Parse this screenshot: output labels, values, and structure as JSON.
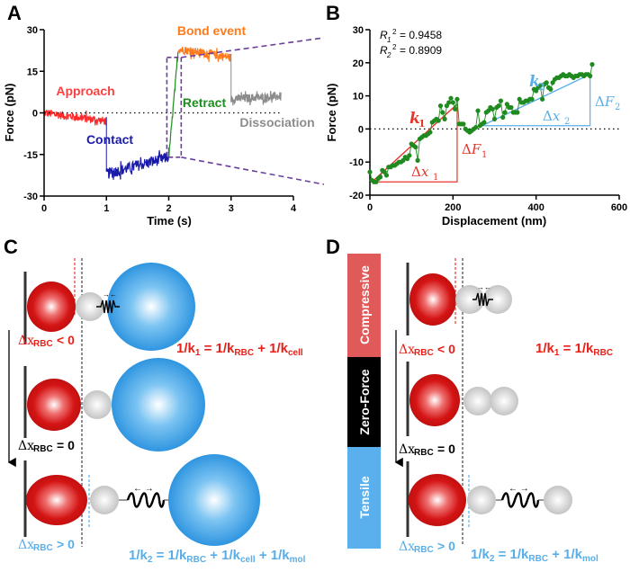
{
  "panels": {
    "A": {
      "letter": "A"
    },
    "B": {
      "letter": "B"
    },
    "C": {
      "letter": "C"
    },
    "D": {
      "letter": "D"
    }
  },
  "colors": {
    "approach": "#ff2a2a",
    "contact": "#1a1aaa",
    "retract": "#1e8c1e",
    "bond": "#ff7a1a",
    "dissociation": "#8c8c8c",
    "zoom_box": "#6a3d9a",
    "k1_fit": "#e8352b",
    "k2_fit": "#5aaee8",
    "points": "#1f8a1f",
    "rbc": "#d41414",
    "cell": "#3aa0e8",
    "bead": "#d8d8d8",
    "compressive": "#e05a5a",
    "zero_force": "#000000",
    "tensile": "#5ab0ec",
    "red_text": "#e8201a",
    "blue_text": "#5ab0ec"
  },
  "chart_data": [
    {
      "id": "A",
      "type": "line",
      "title": "",
      "xlabel": "Time (s)",
      "ylabel": "Force (pN)",
      "xlim": [
        0,
        4
      ],
      "ylim": [
        -30,
        30
      ],
      "xticks": [
        "0",
        "1",
        "2",
        "3",
        "4"
      ],
      "yticks": [
        "-30",
        "-15",
        "0",
        "15",
        "30"
      ],
      "zero_line": "dotted",
      "series": [
        {
          "name": "Approach",
          "t_range": [
            0,
            1
          ],
          "force_start": 0,
          "force_end": -3,
          "noise": 1.5
        },
        {
          "name": "Contact",
          "t_range": [
            1,
            2
          ],
          "force_start": -22,
          "force_end": -16,
          "noise": 2
        },
        {
          "name": "Retract",
          "t_range": [
            2,
            2.15
          ],
          "force_start": -16,
          "force_end": 22,
          "noise": 1
        },
        {
          "name": "Bond event",
          "t_range": [
            2.15,
            3
          ],
          "force_start": 23,
          "force_end": 20,
          "noise": 1.5
        },
        {
          "name": "Dissociation",
          "t_range": [
            3,
            3.8
          ],
          "force_start": 5,
          "force_end": 6,
          "noise": 1.5
        }
      ],
      "annotations": [
        "Approach",
        "Contact",
        "Retract",
        "Bond event",
        "Dissociation"
      ],
      "zoom_box": {
        "t_range": [
          1.97,
          2.2
        ],
        "force_range": [
          -16,
          20
        ]
      }
    },
    {
      "id": "B",
      "type": "scatter",
      "title": "",
      "xlabel": "Displacement (nm)",
      "ylabel": "Force (pN)",
      "xlim": [
        0,
        600
      ],
      "ylim": [
        -20,
        30
      ],
      "xticks": [
        "0",
        "200",
        "400",
        "600"
      ],
      "yticks": [
        "-20",
        "-10",
        "0",
        "10",
        "20",
        "30"
      ],
      "zero_line": "dotted",
      "r_squared": [
        {
          "label": "R",
          "sub": "1",
          "sup": "2",
          "value": "= 0.9458"
        },
        {
          "label": "R",
          "sub": "2",
          "sup": "2",
          "value": "= 0.8909"
        }
      ],
      "x": [
        0,
        5,
        10,
        15,
        20,
        25,
        30,
        35,
        40,
        45,
        50,
        55,
        60,
        65,
        70,
        75,
        80,
        85,
        90,
        95,
        100,
        105,
        110,
        115,
        120,
        125,
        130,
        135,
        140,
        145,
        150,
        155,
        160,
        165,
        170,
        175,
        180,
        185,
        190,
        195,
        200,
        205,
        210,
        215,
        220,
        225,
        230,
        235,
        240,
        245,
        250,
        255,
        260,
        265,
        270,
        275,
        280,
        285,
        290,
        295,
        300,
        305,
        310,
        315,
        320,
        325,
        330,
        335,
        340,
        345,
        350,
        355,
        360,
        365,
        370,
        375,
        380,
        385,
        390,
        395,
        400,
        405,
        410,
        415,
        420,
        425,
        430,
        435,
        440,
        445,
        450,
        455,
        460,
        465,
        470,
        475,
        480,
        485,
        490,
        495,
        500,
        505,
        510,
        515,
        520,
        525,
        530,
        535
      ],
      "y": [
        -13,
        -15.5,
        -16,
        -16,
        -15,
        -14.5,
        -12.5,
        -13,
        -14,
        -11.5,
        -11.5,
        -11,
        -11,
        -10.5,
        -10,
        -10,
        -9.5,
        -8.5,
        -9,
        -8,
        -4.5,
        -5,
        -5.5,
        -9.5,
        -3,
        -2.5,
        -2,
        -2,
        -1.5,
        -1,
        2,
        2.5,
        3,
        2.5,
        7,
        5,
        3,
        7,
        8,
        9.3,
        8,
        6,
        9,
        1.5,
        1.5,
        1.5,
        0,
        -0.5,
        -1,
        -0.5,
        0,
        0.5,
        5.5,
        1,
        1.5,
        2,
        5,
        5.5,
        6.5,
        6,
        3,
        6.5,
        7,
        8.5,
        3.5,
        5,
        7.5,
        6.5,
        6.5,
        5,
        5,
        5,
        9,
        8,
        8,
        8.5,
        8.5,
        9,
        9,
        12,
        11.5,
        12.5,
        13,
        9,
        13.5,
        14,
        12.5,
        12,
        14,
        15,
        15.5,
        15.5,
        16,
        16.5,
        16,
        16,
        16.5,
        16,
        15.5,
        16,
        16,
        16.5,
        16.5,
        16,
        16.5,
        16.5,
        16,
        19.5
      ],
      "fits": [
        {
          "name": "k1",
          "x": [
            5,
            210
          ],
          "y": [
            -16,
            7.5
          ]
        },
        {
          "name": "k2",
          "x": [
            270,
            530
          ],
          "y": [
            1,
            16.5
          ]
        }
      ],
      "triangles": [
        {
          "dx_label": "Δx1",
          "dF_label": "ΔF1",
          "x0": 5,
          "x1": 210,
          "y0": -16,
          "y1": 7.5
        },
        {
          "dx_label": "Δx2",
          "dF_label": "ΔF2",
          "x0": 270,
          "x1": 530,
          "y0": 1,
          "y1": 16.5
        }
      ],
      "slope_labels": [
        "k1",
        "k2"
      ]
    }
  ],
  "panel_C": {
    "stages": [
      {
        "label_main": "Δx",
        "label_sub": "RBC",
        "label_rel": "< 0",
        "color": "red"
      },
      {
        "label_main": "Δx",
        "label_sub": "RBC",
        "label_rel": "= 0",
        "color": "black"
      },
      {
        "label_main": "Δx",
        "label_sub": "RBC",
        "label_rel": "> 0",
        "color": "blue"
      }
    ],
    "eq1": {
      "lhs": "1/k",
      "lhs_sub": "1",
      "eq": " = 1/k",
      "t1_sub": "RBC",
      "plus": " + 1/k",
      "t2_sub": "cell"
    },
    "eq2": {
      "lhs": "1/k",
      "lhs_sub": "2",
      "eq": " = 1/k",
      "t1_sub": "RBC",
      "plus1": " + 1/k",
      "t2_sub": "cell",
      "plus2": " + 1/k",
      "t3_sub": "mol"
    }
  },
  "panel_D": {
    "bar": [
      "Compressive",
      "Zero-Force",
      "Tensile"
    ],
    "stages": [
      {
        "label_main": "Δx",
        "label_sub": "RBC",
        "label_rel": "< 0"
      },
      {
        "label_main": "Δx",
        "label_sub": "RBC",
        "label_rel": "= 0"
      },
      {
        "label_main": "Δx",
        "label_sub": "RBC",
        "label_rel": "> 0"
      }
    ],
    "eq1": {
      "lhs": "1/k",
      "lhs_sub": "1",
      "eq": " = 1/k",
      "t1_sub": "RBC"
    },
    "eq2": {
      "lhs": "1/k",
      "lhs_sub": "2",
      "eq": " = 1/k",
      "t1_sub": "RBC",
      "plus": " + 1/k",
      "t2_sub": "mol"
    }
  }
}
